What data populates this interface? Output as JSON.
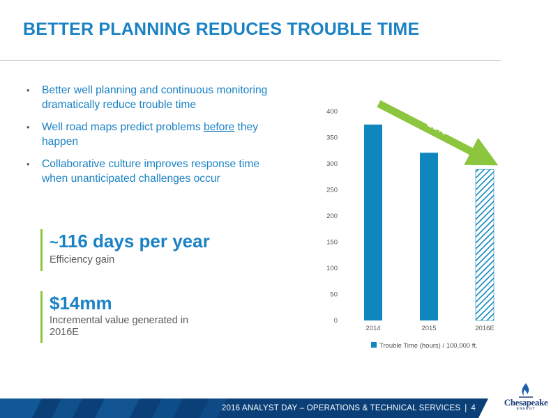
{
  "slide": {
    "title": "BETTER PLANNING REDUCES TROUBLE TIME",
    "bullets": [
      {
        "text": "Better well planning and continuous monitoring dramatically reduce trouble time"
      },
      {
        "before": "Well road maps predict problems ",
        "emphasis": "before",
        "after": " they happen"
      },
      {
        "text": "Collaborative culture improves response time when unanticipated challenges occur"
      }
    ],
    "bullet_glyph": "•",
    "stats": [
      {
        "prefix": "~",
        "value": "116 days per year",
        "label": "Efficiency gain"
      },
      {
        "prefix": "",
        "value": "$14mm",
        "label": "Incremental value generated in 2016E"
      }
    ],
    "footer": {
      "text": "2016 ANALYST DAY – OPERATIONS & TECHNICAL SERVICES",
      "separator": "|",
      "page": "4"
    },
    "logo": {
      "name": "Chesapeake",
      "sub": "ENERGY"
    },
    "colors": {
      "accent_blue": "#1a82c4",
      "bar_blue": "#0f87be",
      "green": "#8cc63f",
      "footer_dark": "#0a3f78",
      "footer_mid": "#1a6fb0"
    }
  },
  "chart_data": {
    "type": "bar",
    "categories": [
      "2014",
      "2015",
      "2016E"
    ],
    "series": [
      {
        "name": "Trouble Time (hours) / 100,000 ft.",
        "values": [
          375,
          321,
          289
        ],
        "patterns": [
          "solid",
          "solid",
          "hatched"
        ]
      }
    ],
    "ylim": [
      0,
      400
    ],
    "yticks": [
      0,
      50,
      100,
      150,
      200,
      250,
      300,
      350,
      400
    ],
    "grid": false,
    "legend": "bottom",
    "annotation": {
      "text": "23%",
      "type": "arrow",
      "from": "2014",
      "to": "2016E"
    }
  }
}
